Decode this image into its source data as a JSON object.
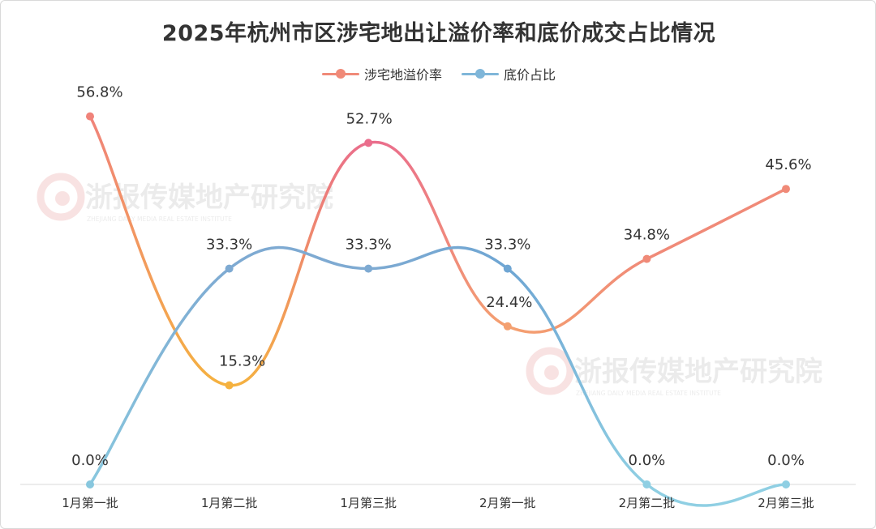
{
  "chart_data": {
    "type": "line",
    "title": "2025年杭州市区涉宅地出让溢价率和底价成交占比情况",
    "categories": [
      "1月第一批",
      "1月第二批",
      "1月第三批",
      "2月第一批",
      "2月第二批",
      "2月第三批"
    ],
    "series": [
      {
        "name": "涉宅地溢价率",
        "values": [
          56.8,
          15.3,
          52.7,
          24.4,
          34.8,
          45.6
        ],
        "labels": [
          "56.8%",
          "15.3%",
          "52.7%",
          "24.4%",
          "34.8%",
          "45.6%"
        ],
        "colors": [
          "#f0837a",
          "#f5b23f",
          "#ea6d8c",
          "#f4a070",
          "#f08a78"
        ]
      },
      {
        "name": "底价占比",
        "values": [
          0.0,
          33.3,
          33.3,
          33.3,
          0.0,
          0.0
        ],
        "labels": [
          "0.0%",
          "33.3%",
          "33.3%",
          "33.3%",
          "0.0%",
          "0.0%"
        ],
        "colors": [
          "#88c7de",
          "#7eaad2",
          "#7eaad2",
          "#6fa6d3",
          "#8fcfe3"
        ]
      }
    ],
    "ylim": [
      0,
      60
    ],
    "grid": false,
    "legend": "top-center",
    "smooth": true
  },
  "watermark": {
    "text": "浙报传媒地产研究院",
    "subtext": "ZHEJIANG DAILY MEDIA REAL ESTATE INSTITUTE"
  }
}
